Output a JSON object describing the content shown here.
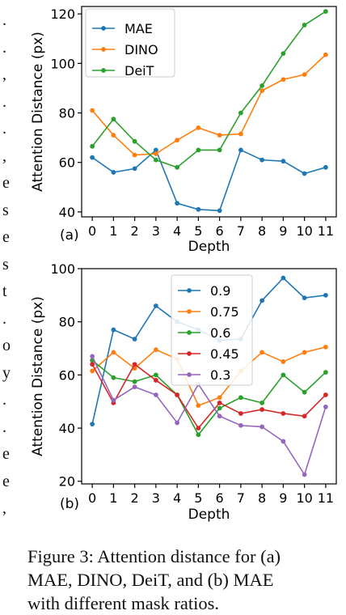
{
  "margin_glyphs": [
    ".",
    ".",
    ",",
    ".",
    ".",
    ",",
    "e",
    "s",
    "e",
    "s",
    "t",
    ".",
    "o",
    "y",
    ".",
    ".",
    "e",
    "e",
    ","
  ],
  "caption_lines": [
    "Figure 3: Attention distance for (a)",
    "MAE, DINO, DeiT, and (b) MAE",
    "with different mask ratios."
  ],
  "chart_data": [
    {
      "type": "line",
      "panel_label": "(a)",
      "xlabel": "Depth",
      "ylabel": "Attention Distance (px)",
      "x": [
        0,
        1,
        2,
        3,
        4,
        5,
        6,
        7,
        8,
        9,
        10,
        11
      ],
      "xticks": [
        "0",
        "1",
        "2",
        "3",
        "4",
        "5",
        "6",
        "7",
        "8",
        "9",
        "10",
        "11"
      ],
      "yticks": [
        40,
        60,
        80,
        100,
        120
      ],
      "ylim": [
        38,
        123
      ],
      "xlim": [
        -0.5,
        11.5
      ],
      "legend_position": "upper-left",
      "grid": false,
      "series": [
        {
          "name": "MAE",
          "color": "#1f77b4",
          "values": [
            62,
            56,
            57.5,
            65,
            43.5,
            41,
            40.5,
            65,
            61,
            60.5,
            55.5,
            58
          ]
        },
        {
          "name": "DINO",
          "color": "#ff7f0e",
          "values": [
            81,
            71,
            63,
            63.5,
            69,
            74,
            71,
            71.5,
            89,
            93.5,
            95.5,
            103.5
          ]
        },
        {
          "name": "DeiT",
          "color": "#2ca02c",
          "values": [
            66.5,
            77.5,
            68.5,
            61,
            58,
            65,
            65,
            80,
            91,
            104,
            115.5,
            121
          ]
        }
      ]
    },
    {
      "type": "line",
      "panel_label": "(b)",
      "xlabel": "Depth",
      "ylabel": "Attention Distance (px)",
      "x": [
        0,
        1,
        2,
        3,
        4,
        5,
        6,
        7,
        8,
        9,
        10,
        11
      ],
      "xticks": [
        "0",
        "1",
        "2",
        "3",
        "4",
        "5",
        "6",
        "7",
        "8",
        "9",
        "10",
        "11"
      ],
      "yticks": [
        20,
        40,
        60,
        80,
        100
      ],
      "ylim": [
        19,
        100
      ],
      "xlim": [
        -0.5,
        11.5
      ],
      "legend_position": "upper-center",
      "grid": false,
      "series": [
        {
          "name": "0.9",
          "color": "#1f77b4",
          "values": [
            41.5,
            77,
            73.5,
            86,
            80,
            77,
            73,
            73.5,
            88,
            96.5,
            89,
            90
          ]
        },
        {
          "name": "0.75",
          "color": "#ff7f0e",
          "values": [
            61.5,
            68.5,
            62.5,
            69.5,
            66,
            48.5,
            51.5,
            61.5,
            68.5,
            65,
            68.5,
            70.5
          ]
        },
        {
          "name": "0.6",
          "color": "#2ca02c",
          "values": [
            65.5,
            59,
            57.5,
            60,
            52.5,
            37.5,
            47.5,
            51.5,
            49.5,
            60,
            53.5,
            61
          ]
        },
        {
          "name": "0.45",
          "color": "#d62728",
          "values": [
            64,
            49.5,
            64,
            58,
            52.5,
            40,
            49.5,
            45.5,
            47,
            45.5,
            44.5,
            52.5
          ]
        },
        {
          "name": "0.3",
          "color": "#9467bd",
          "values": [
            67,
            50.5,
            55.5,
            52.5,
            42,
            56.5,
            44.5,
            41,
            40.5,
            35,
            22.5,
            48
          ]
        }
      ]
    }
  ]
}
